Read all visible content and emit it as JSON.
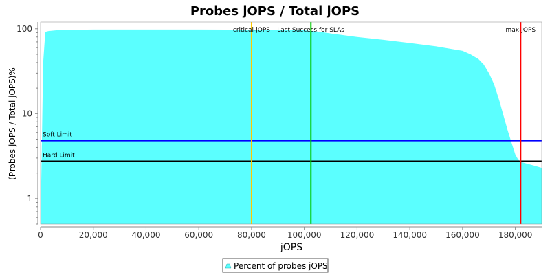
{
  "chart_data": {
    "type": "area",
    "title": "Probes jOPS / Total jOPS",
    "xlabel": "jOPS",
    "ylabel": "(Probes jOPS / Total jOPS)%",
    "xlim": [
      0,
      190000
    ],
    "ylim": [
      0.5,
      120
    ],
    "y_scale": "log",
    "x_ticks": [
      0,
      20000,
      40000,
      60000,
      80000,
      100000,
      120000,
      140000,
      160000,
      180000
    ],
    "x_tick_labels": [
      "0",
      "20,000",
      "40,000",
      "60,000",
      "80,000",
      "100,000",
      "120,000",
      "140,000",
      "160,000",
      "180,000"
    ],
    "y_ticks": [
      1,
      10,
      100
    ],
    "y_tick_labels": [
      "1",
      "10",
      "100"
    ],
    "series": [
      {
        "name": "Percent of probes jOPS",
        "color": "#5BFFFF",
        "x": [
          0,
          1000,
          1800,
          3000,
          6000,
          12000,
          20000,
          40000,
          60000,
          80000,
          90000,
          100000,
          105000,
          110000,
          120000,
          130000,
          140000,
          150000,
          160000,
          163000,
          166000,
          168000,
          170000,
          172000,
          174000,
          175500,
          177000,
          178500,
          180000,
          181000,
          182000,
          184000,
          186000,
          188000,
          190000
        ],
        "values": [
          0.5,
          40,
          92,
          94,
          96,
          97.5,
          98,
          98,
          98,
          97.5,
          97,
          96,
          93,
          88,
          80,
          74,
          68,
          62,
          55,
          50,
          44,
          38,
          30,
          22,
          14,
          9.5,
          6.5,
          4.6,
          3.3,
          2.9,
          2.7,
          2.6,
          2.5,
          2.4,
          2.3
        ]
      }
    ],
    "markers": [
      {
        "label": "critical-jOPS",
        "x": 80000,
        "color": "#FFC800"
      },
      {
        "label": "Last Success for SLAs",
        "x": 102500,
        "color": "#00C800"
      },
      {
        "label": "max-jOPS",
        "x": 182000,
        "color": "#FF0000"
      }
    ],
    "limits": [
      {
        "label": "Soft Limit",
        "y": 4.8,
        "color": "#0000FF"
      },
      {
        "label": "Hard Limit",
        "y": 2.75,
        "color": "#000000"
      }
    ],
    "grid": false,
    "legend_position": "bottom-center"
  }
}
